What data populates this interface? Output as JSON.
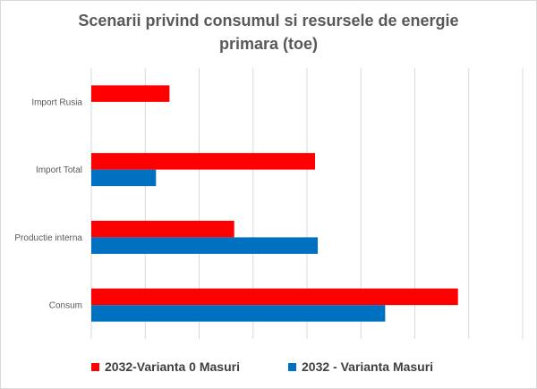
{
  "chart_data": {
    "type": "bar",
    "orientation": "horizontal",
    "title_lines": [
      "Scenarii privind consumul si resursele de energie",
      "primara  (toe)"
    ],
    "categories": [
      "Import Rusia",
      "Import Total",
      "Productie interna",
      "Consum"
    ],
    "series": [
      {
        "name": "2032-Varianta 0 Masuri",
        "color": "#ff0000",
        "values": [
          1.45,
          4.15,
          2.65,
          6.8
        ]
      },
      {
        "name": "2032 - Varianta Masuri",
        "color": "#0070c0",
        "values": [
          0,
          1.2,
          4.2,
          5.45
        ]
      }
    ],
    "xlim": [
      0,
      8
    ],
    "grid": true,
    "legend_position": "bottom",
    "axis_tick_labels_shown": false
  }
}
